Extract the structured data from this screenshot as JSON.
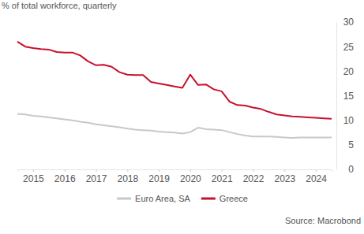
{
  "chart_data": {
    "type": "line",
    "y_label": "% of total workforce, quarterly",
    "source": "Source: Macrobond",
    "categories": [
      null,
      null,
      "2015",
      null,
      null,
      null,
      "2016",
      null,
      null,
      null,
      "2017",
      null,
      null,
      null,
      "2018",
      null,
      null,
      null,
      "2019",
      null,
      null,
      null,
      "2020",
      null,
      null,
      null,
      "2021",
      null,
      null,
      null,
      "2022",
      null,
      null,
      null,
      "2023",
      null,
      null,
      null,
      "2024",
      null,
      null
    ],
    "series": [
      {
        "name": "Euro Area, SA",
        "color": "#c8c8c8",
        "line_style": "solid",
        "values": [
          11.3,
          11.2,
          10.9,
          10.8,
          10.6,
          10.4,
          10.2,
          10.0,
          9.7,
          9.5,
          9.2,
          9.0,
          8.8,
          8.6,
          8.3,
          8.1,
          8.0,
          7.9,
          7.7,
          7.6,
          7.5,
          7.3,
          7.6,
          8.5,
          8.2,
          8.1,
          8.0,
          7.6,
          7.2,
          6.9,
          6.7,
          6.7,
          6.7,
          6.6,
          6.5,
          6.4,
          6.5,
          6.5,
          6.5,
          6.5,
          6.5
        ]
      },
      {
        "name": "Greece",
        "color": "#c8102e",
        "line_style": "solid",
        "values": [
          26.0,
          25.0,
          24.7,
          24.5,
          24.4,
          23.9,
          23.8,
          23.8,
          23.2,
          22.0,
          21.2,
          21.3,
          20.9,
          19.8,
          19.3,
          19.2,
          19.2,
          17.8,
          17.5,
          17.2,
          16.9,
          16.6,
          19.3,
          17.2,
          17.3,
          16.3,
          15.9,
          13.8,
          13.1,
          13.0,
          12.6,
          12.3,
          11.7,
          11.2,
          11.0,
          10.8,
          10.7,
          10.6,
          10.5,
          10.4,
          10.3
        ]
      }
    ],
    "ylim": [
      0,
      30
    ],
    "yticks": [
      0,
      5,
      10,
      15,
      20,
      25,
      30
    ],
    "grid": false,
    "legend": "bottom"
  }
}
